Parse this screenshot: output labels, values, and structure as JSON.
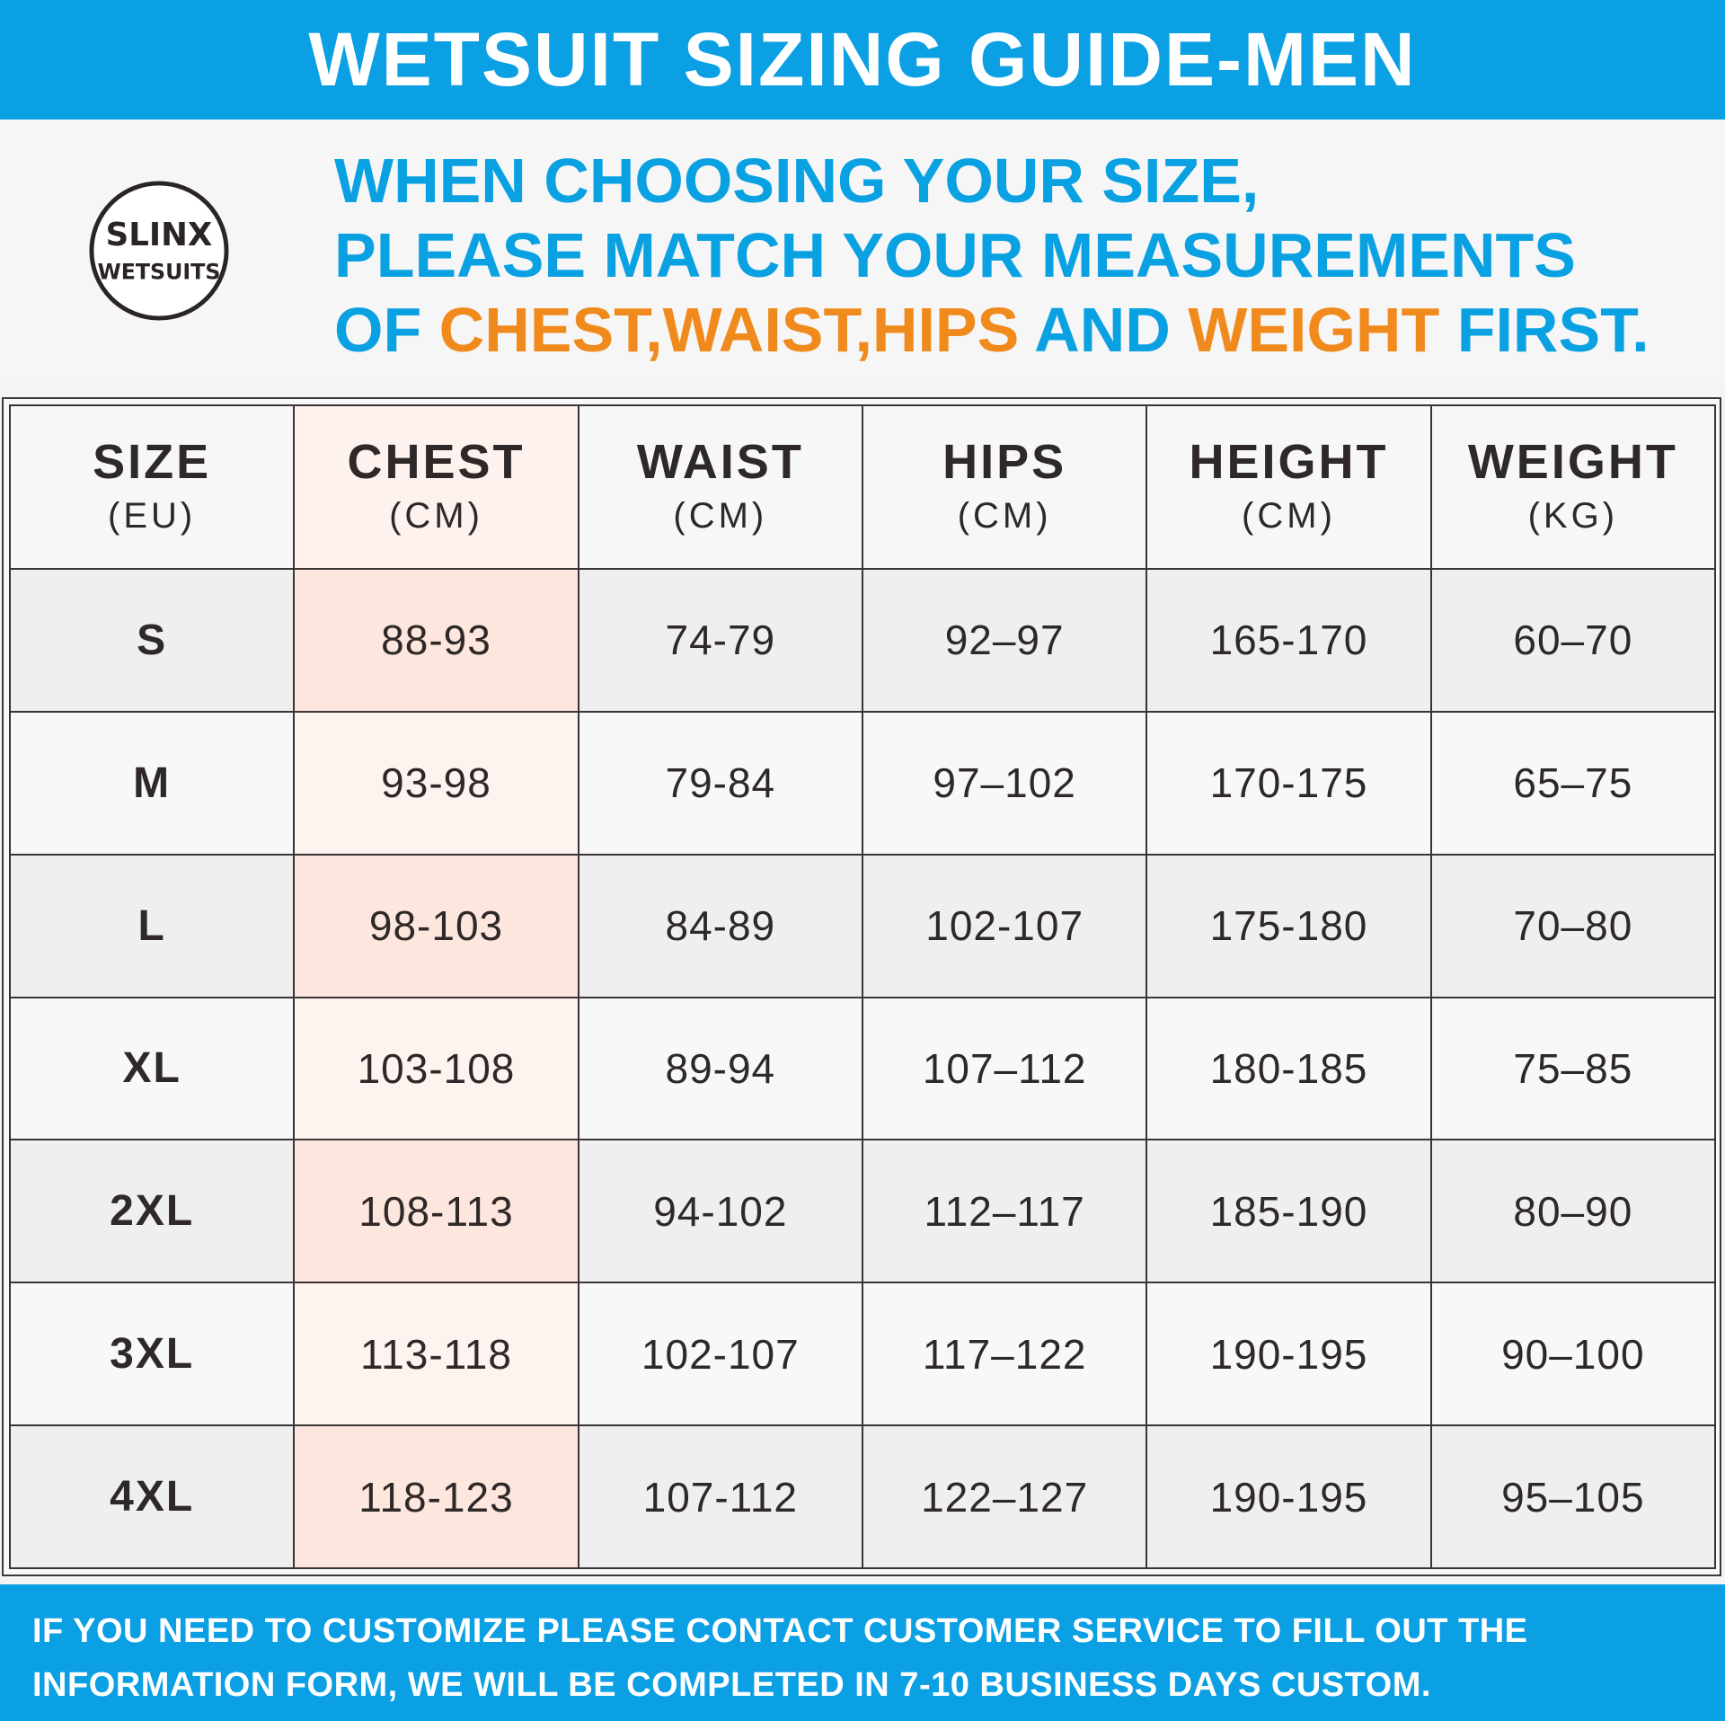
{
  "header": {
    "title": "WETSUIT SIZING GUIDE-MEN"
  },
  "logo": {
    "icon": "brand-seal-logo",
    "text_top": "SLINX",
    "text_bottom": "WETSUITS"
  },
  "intro": {
    "line1": "WHEN CHOOSING YOUR SIZE,",
    "line2": "PLEASE MATCH YOUR MEASUREMENTS",
    "line3_a": "OF ",
    "line3_b": "CHEST,WAIST,HIPS",
    "line3_c": " AND ",
    "line3_d": "WEIGHT",
    "line3_e": " FIRST."
  },
  "colors": {
    "brand_blue": "#0b9fe3",
    "accent_orange": "#f08a1d",
    "chest_highlight": "#fce6dd"
  },
  "table": {
    "columns": [
      {
        "name": "SIZE",
        "unit": "(EU)"
      },
      {
        "name": "CHEST",
        "unit": "(CM)"
      },
      {
        "name": "WAIST",
        "unit": "(CM)"
      },
      {
        "name": "HIPS",
        "unit": "(CM)"
      },
      {
        "name": "HEIGHT",
        "unit": "(CM)"
      },
      {
        "name": "WEIGHT",
        "unit": "(KG)"
      }
    ],
    "rows": [
      [
        "S",
        "88-93",
        "74-79",
        "92–97",
        "165-170",
        "60–70"
      ],
      [
        "M",
        "93-98",
        "79-84",
        "97–102",
        "170-175",
        "65–75"
      ],
      [
        "L",
        "98-103",
        "84-89",
        "102-107",
        "175-180",
        "70–80"
      ],
      [
        "XL",
        "103-108",
        "89-94",
        "107–112",
        "180-185",
        "75–85"
      ],
      [
        "2XL",
        "108-113",
        "94-102",
        "112–117",
        "185-190",
        "80–90"
      ],
      [
        "3XL",
        "113-118",
        "102-107",
        "117–122",
        "190-195",
        "90–100"
      ],
      [
        "4XL",
        "118-123",
        "107-112",
        "122–127",
        "190-195",
        "95–105"
      ]
    ]
  },
  "footer": {
    "line1": "IF YOU NEED TO CUSTOMIZE PLEASE CONTACT CUSTOMER SERVICE TO FILL OUT THE",
    "line2": "INFORMATION FORM, WE WILL BE COMPLETED IN 7-10 BUSINESS DAYS CUSTOM."
  }
}
